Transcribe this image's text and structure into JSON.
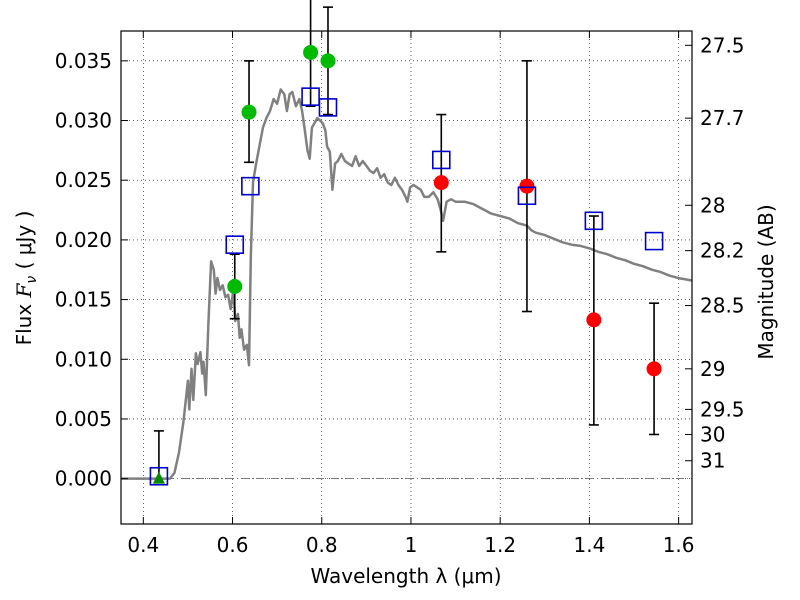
{
  "chart_data": {
    "type": "scatter",
    "xlabel": "Wavelength  λ (μm)",
    "ylabel_prefix": "Flux  ",
    "ylabel_symbol": "F",
    "ylabel_subscript": "ν",
    "ylabel_suffix": "  ( μJy )",
    "ylabel_right": "Magnitude (AB)",
    "xlim": [
      0.35,
      1.63
    ],
    "ylim": [
      -0.0038,
      0.0375
    ],
    "x_ticks": [
      {
        "value": 0.4,
        "label": "0.4"
      },
      {
        "value": 0.6,
        "label": "0.6"
      },
      {
        "value": 0.8,
        "label": "0.8"
      },
      {
        "value": 1.0,
        "label": "1"
      },
      {
        "value": 1.2,
        "label": "1.2"
      },
      {
        "value": 1.4,
        "label": "1.4"
      },
      {
        "value": 1.6,
        "label": "1.6"
      }
    ],
    "y_ticks": [
      {
        "value": 0.0,
        "label": "0.000"
      },
      {
        "value": 0.005,
        "label": "0.005"
      },
      {
        "value": 0.01,
        "label": "0.010"
      },
      {
        "value": 0.015,
        "label": "0.015"
      },
      {
        "value": 0.02,
        "label": "0.020"
      },
      {
        "value": 0.025,
        "label": "0.025"
      },
      {
        "value": 0.03,
        "label": "0.030"
      },
      {
        "value": 0.035,
        "label": "0.035"
      }
    ],
    "right_ticks": [
      {
        "flux": 0.0363,
        "label": "27.5"
      },
      {
        "flux": 0.0302,
        "label": "27.7"
      },
      {
        "flux": 0.0229,
        "label": "28"
      },
      {
        "flux": 0.0191,
        "label": "28.2"
      },
      {
        "flux": 0.0145,
        "label": "28.5"
      },
      {
        "flux": 0.0092,
        "label": "29"
      },
      {
        "flux": 0.0058,
        "label": "29.5"
      },
      {
        "flux": 0.0037,
        "label": "30"
      },
      {
        "flux": 0.0015,
        "label": "31"
      }
    ],
    "grid": true,
    "zero_line": true,
    "model_sed": {
      "color": "#808080",
      "points": [
        [
          0.35,
          0.0
        ],
        [
          0.46,
          0.0
        ],
        [
          0.47,
          0.0005
        ],
        [
          0.48,
          0.0022
        ],
        [
          0.49,
          0.0048
        ],
        [
          0.5,
          0.0082
        ],
        [
          0.503,
          0.0058
        ],
        [
          0.508,
          0.0092
        ],
        [
          0.512,
          0.0066
        ],
        [
          0.518,
          0.0105
        ],
        [
          0.522,
          0.0096
        ],
        [
          0.528,
          0.0106
        ],
        [
          0.532,
          0.0088
        ],
        [
          0.535,
          0.0098
        ],
        [
          0.54,
          0.007
        ],
        [
          0.546,
          0.013
        ],
        [
          0.552,
          0.0182
        ],
        [
          0.558,
          0.0175
        ],
        [
          0.562,
          0.0155
        ],
        [
          0.566,
          0.0168
        ],
        [
          0.572,
          0.0158
        ],
        [
          0.578,
          0.0162
        ],
        [
          0.584,
          0.0152
        ],
        [
          0.59,
          0.0154
        ],
        [
          0.596,
          0.0142
        ],
        [
          0.602,
          0.0158
        ],
        [
          0.606,
          0.0132
        ],
        [
          0.612,
          0.0138
        ],
        [
          0.616,
          0.0118
        ],
        [
          0.62,
          0.0125
        ],
        [
          0.626,
          0.0108
        ],
        [
          0.632,
          0.0112
        ],
        [
          0.637,
          0.0095
        ],
        [
          0.641,
          0.0185
        ],
        [
          0.646,
          0.0248
        ],
        [
          0.652,
          0.0262
        ],
        [
          0.66,
          0.0278
        ],
        [
          0.668,
          0.0294
        ],
        [
          0.676,
          0.0302
        ],
        [
          0.684,
          0.0308
        ],
        [
          0.692,
          0.0318
        ],
        [
          0.7,
          0.0314
        ],
        [
          0.708,
          0.0326
        ],
        [
          0.716,
          0.0322
        ],
        [
          0.722,
          0.0308
        ],
        [
          0.728,
          0.0322
        ],
        [
          0.734,
          0.0324
        ],
        [
          0.742,
          0.0312
        ],
        [
          0.75,
          0.0318
        ],
        [
          0.756,
          0.0308
        ],
        [
          0.762,
          0.0292
        ],
        [
          0.768,
          0.0275
        ],
        [
          0.773,
          0.0268
        ],
        [
          0.778,
          0.0294
        ],
        [
          0.784,
          0.0298
        ],
        [
          0.79,
          0.0302
        ],
        [
          0.796,
          0.03
        ],
        [
          0.802,
          0.0298
        ],
        [
          0.808,
          0.0292
        ],
        [
          0.812,
          0.0278
        ],
        [
          0.818,
          0.0274
        ],
        [
          0.824,
          0.0242
        ],
        [
          0.83,
          0.0264
        ],
        [
          0.836,
          0.0266
        ],
        [
          0.844,
          0.0272
        ],
        [
          0.852,
          0.0266
        ],
        [
          0.86,
          0.0264
        ],
        [
          0.868,
          0.0262
        ],
        [
          0.876,
          0.027
        ],
        [
          0.884,
          0.0262
        ],
        [
          0.892,
          0.0266
        ],
        [
          0.9,
          0.0262
        ],
        [
          0.908,
          0.0258
        ],
        [
          0.916,
          0.0256
        ],
        [
          0.924,
          0.026
        ],
        [
          0.932,
          0.0252
        ],
        [
          0.94,
          0.0255
        ],
        [
          0.948,
          0.0248
        ],
        [
          0.956,
          0.0246
        ],
        [
          0.964,
          0.0252
        ],
        [
          0.972,
          0.0246
        ],
        [
          0.98,
          0.0242
        ],
        [
          0.988,
          0.0236
        ],
        [
          0.992,
          0.0232
        ],
        [
          0.998,
          0.0244
        ],
        [
          1.006,
          0.0246
        ],
        [
          1.014,
          0.0244
        ],
        [
          1.022,
          0.0242
        ],
        [
          1.03,
          0.0236
        ],
        [
          1.04,
          0.0236
        ],
        [
          1.05,
          0.024
        ],
        [
          1.06,
          0.0234
        ],
        [
          1.066,
          0.0226
        ],
        [
          1.072,
          0.0216
        ],
        [
          1.08,
          0.0232
        ],
        [
          1.09,
          0.0234
        ],
        [
          1.1,
          0.0232
        ],
        [
          1.12,
          0.0232
        ],
        [
          1.14,
          0.023
        ],
        [
          1.16,
          0.0226
        ],
        [
          1.18,
          0.0222
        ],
        [
          1.2,
          0.022
        ],
        [
          1.22,
          0.0218
        ],
        [
          1.24,
          0.0214
        ],
        [
          1.26,
          0.0212
        ],
        [
          1.27,
          0.0208
        ],
        [
          1.28,
          0.0206
        ],
        [
          1.3,
          0.0204
        ],
        [
          1.32,
          0.0201
        ],
        [
          1.34,
          0.0198
        ],
        [
          1.36,
          0.0196
        ],
        [
          1.38,
          0.0195
        ],
        [
          1.4,
          0.0193
        ],
        [
          1.42,
          0.019
        ],
        [
          1.44,
          0.0188
        ],
        [
          1.46,
          0.0185
        ],
        [
          1.48,
          0.0183
        ],
        [
          1.5,
          0.018
        ],
        [
          1.52,
          0.0178
        ],
        [
          1.54,
          0.0175
        ],
        [
          1.56,
          0.0173
        ],
        [
          1.58,
          0.017
        ],
        [
          1.6,
          0.0168
        ],
        [
          1.63,
          0.0166
        ]
      ]
    },
    "observed_green": {
      "color": "#00bb00",
      "points": [
        {
          "x": 0.435,
          "y": 0.0,
          "yerr_low": 0.0,
          "yerr_high": 0.004,
          "marker": "triangle"
        },
        {
          "x": 0.605,
          "y": 0.0161,
          "yerr_low": 0.0027,
          "yerr_high": 0.0027,
          "marker": "circle"
        },
        {
          "x": 0.637,
          "y": 0.0307,
          "yerr_low": 0.0042,
          "yerr_high": 0.0043,
          "marker": "circle"
        },
        {
          "x": 0.775,
          "y": 0.0357,
          "yerr_low": 0.0045,
          "yerr_high": 0.0045,
          "marker": "circle"
        },
        {
          "x": 0.814,
          "y": 0.035,
          "yerr_low": 0.0045,
          "yerr_high": 0.0045,
          "marker": "circle"
        }
      ]
    },
    "observed_red": {
      "color": "#ff0000",
      "points": [
        {
          "x": 1.068,
          "y": 0.0248,
          "yerr_low": 0.0058,
          "yerr_high": 0.0057
        },
        {
          "x": 1.26,
          "y": 0.0245,
          "yerr_low": 0.0105,
          "yerr_high": 0.0105
        },
        {
          "x": 1.41,
          "y": 0.0133,
          "yerr_low": 0.0088,
          "yerr_high": 0.0087
        },
        {
          "x": 1.545,
          "y": 0.0092,
          "yerr_low": 0.0055,
          "yerr_high": 0.0055
        }
      ]
    },
    "model_bands": {
      "color": "#0000cc",
      "points": [
        [
          0.435,
          0.0002
        ],
        [
          0.605,
          0.0196
        ],
        [
          0.64,
          0.0245
        ],
        [
          0.775,
          0.032
        ],
        [
          0.814,
          0.0311
        ],
        [
          1.068,
          0.0267
        ],
        [
          1.26,
          0.0237
        ],
        [
          1.41,
          0.0216
        ],
        [
          1.545,
          0.0199
        ]
      ]
    }
  }
}
